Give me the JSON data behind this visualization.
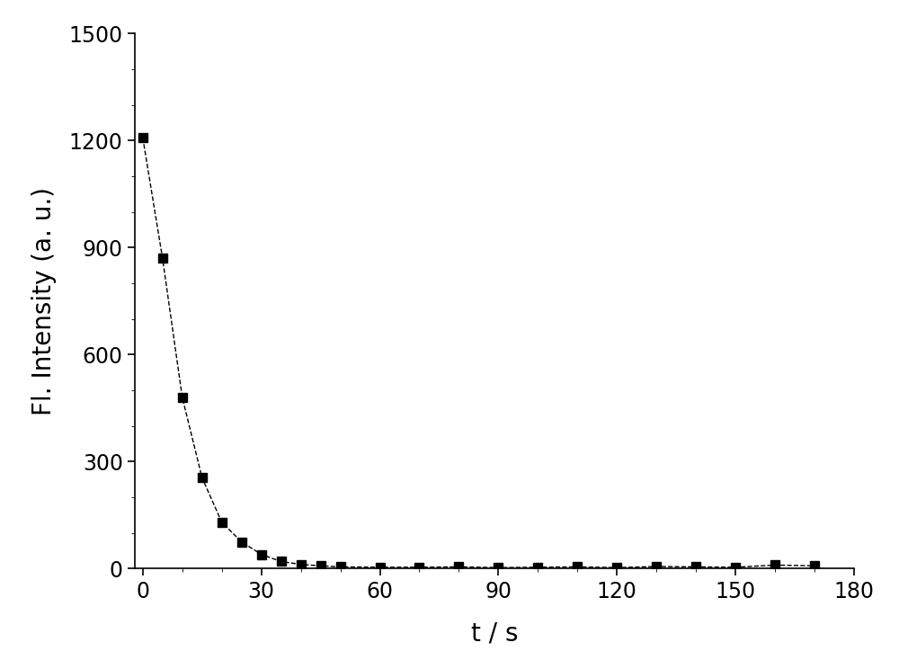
{
  "x": [
    0,
    5,
    10,
    15,
    20,
    25,
    30,
    35,
    40,
    45,
    50,
    60,
    70,
    80,
    90,
    100,
    110,
    120,
    130,
    140,
    150,
    160,
    170
  ],
  "y": [
    1208,
    870,
    480,
    255,
    130,
    75,
    40,
    20,
    12,
    8,
    5,
    4,
    4,
    5,
    3,
    4,
    5,
    3,
    6,
    5,
    4,
    10,
    8
  ],
  "xlabel": "t / s",
  "ylabel": "Fl. Intensity (a. u.)",
  "xlim": [
    -2,
    180
  ],
  "ylim": [
    0,
    1500
  ],
  "xticks": [
    0,
    30,
    60,
    90,
    120,
    150,
    180
  ],
  "yticks": [
    0,
    300,
    600,
    900,
    1200,
    1500
  ],
  "line_color": "#000000",
  "marker": "s",
  "marker_size": 7,
  "line_style": "--",
  "line_width": 1.0,
  "label_fontsize": 20,
  "tick_fontsize": 17,
  "background_color": "#ffffff"
}
